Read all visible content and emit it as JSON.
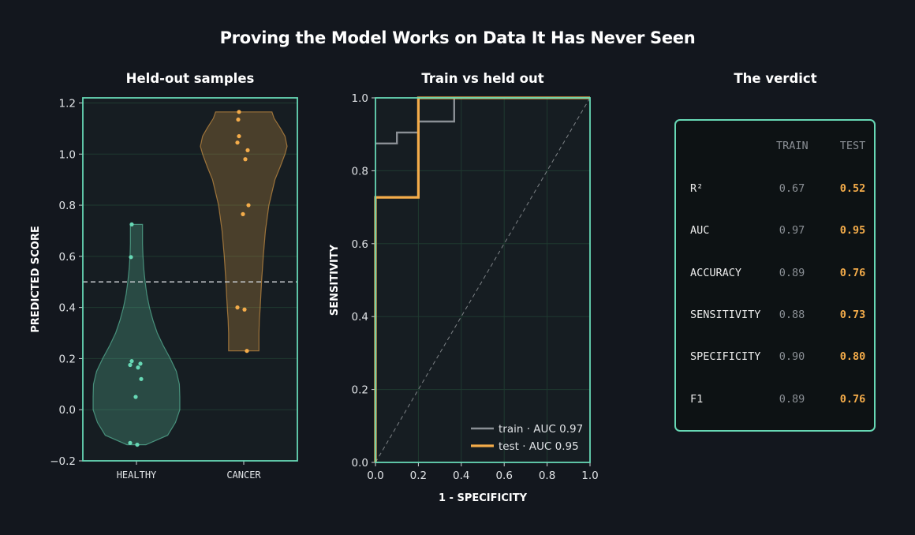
{
  "title": "Proving the Model Works on Data It Has Never Seen",
  "colors": {
    "background": "#13171e",
    "panel_border": "#67d8b5",
    "healthy": "#67d8b5",
    "cancer": "#f4ac4a",
    "train": "#8a8f95",
    "test": "#f4ac4a"
  },
  "chart_data": [
    {
      "type": "violin",
      "title": "Held-out samples",
      "xlabel": "",
      "ylabel": "PREDICTED SCORE",
      "ylim": [
        -0.2,
        1.22
      ],
      "yticks": [
        "1.2",
        "1.0",
        "0.8",
        "0.6",
        "0.4",
        "0.2",
        "0.0",
        "−0.2"
      ],
      "ytick_values": [
        1.2,
        1.0,
        0.8,
        0.6,
        0.4,
        0.2,
        0.0,
        -0.2
      ],
      "categories": [
        "HEALTHY",
        "CANCER"
      ],
      "threshold": 0.5,
      "grid": true,
      "groups": [
        {
          "name": "HEALTHY",
          "color": "#67d8b5",
          "range": [
            -0.137,
            0.725
          ],
          "points": [
            0.725,
            0.597,
            0.19,
            0.175,
            0.18,
            0.165,
            0.12,
            0.05,
            -0.13,
            -0.137
          ],
          "profile": [
            [
              -0.137,
              0.22
            ],
            [
              -0.1,
              0.72
            ],
            [
              -0.05,
              0.9
            ],
            [
              0.0,
              1.0
            ],
            [
              0.05,
              1.0
            ],
            [
              0.1,
              0.99
            ],
            [
              0.15,
              0.92
            ],
            [
              0.2,
              0.78
            ],
            [
              0.25,
              0.62
            ],
            [
              0.3,
              0.48
            ],
            [
              0.35,
              0.38
            ],
            [
              0.4,
              0.3
            ],
            [
              0.45,
              0.24
            ],
            [
              0.5,
              0.2
            ],
            [
              0.55,
              0.17
            ],
            [
              0.6,
              0.15
            ],
            [
              0.65,
              0.14
            ],
            [
              0.725,
              0.14
            ]
          ]
        },
        {
          "name": "CANCER",
          "color": "#f4ac4a",
          "range": [
            0.23,
            1.165
          ],
          "points": [
            1.165,
            1.135,
            1.07,
            1.045,
            1.015,
            0.98,
            0.8,
            0.765,
            0.4,
            0.392,
            0.23
          ],
          "profile": [
            [
              0.23,
              0.35
            ],
            [
              0.3,
              0.35
            ],
            [
              0.35,
              0.36
            ],
            [
              0.4,
              0.38
            ],
            [
              0.5,
              0.41
            ],
            [
              0.6,
              0.45
            ],
            [
              0.7,
              0.5
            ],
            [
              0.8,
              0.58
            ],
            [
              0.9,
              0.72
            ],
            [
              0.95,
              0.84
            ],
            [
              1.0,
              0.95
            ],
            [
              1.03,
              1.0
            ],
            [
              1.07,
              0.95
            ],
            [
              1.1,
              0.85
            ],
            [
              1.14,
              0.7
            ],
            [
              1.165,
              0.65
            ]
          ]
        }
      ]
    },
    {
      "type": "line",
      "title": "Train vs held out",
      "xlabel": "1 - SPECIFICITY",
      "ylabel": "SENSITIVITY",
      "xlim": [
        0,
        1
      ],
      "ylim": [
        0,
        1
      ],
      "xticks": [
        "0.0",
        "0.2",
        "0.4",
        "0.6",
        "0.8",
        "1.0"
      ],
      "yticks": [
        "0.0",
        "0.2",
        "0.4",
        "0.6",
        "0.8",
        "1.0"
      ],
      "grid": true,
      "legend": "bottom-right",
      "series": [
        {
          "name": "train · AUC 0.97",
          "color": "#8a8f95",
          "points": [
            [
              0,
              0.875
            ],
            [
              0.1,
              0.875
            ],
            [
              0.1,
              0.905
            ],
            [
              0.2,
              0.905
            ],
            [
              0.2,
              0.935
            ],
            [
              0.367,
              0.935
            ],
            [
              0.367,
              1.0
            ],
            [
              1.0,
              1.0
            ]
          ]
        },
        {
          "name": "test · AUC 0.95",
          "color": "#f4ac4a",
          "points": [
            [
              0,
              0
            ],
            [
              0,
              0.727
            ],
            [
              0.2,
              0.727
            ],
            [
              0.2,
              1.0
            ],
            [
              1.0,
              1.0
            ]
          ]
        }
      ],
      "diagonal": true
    },
    {
      "type": "table",
      "title": "The verdict",
      "columns": [
        "",
        "TRAIN",
        "TEST"
      ],
      "rows": [
        {
          "label": "R²",
          "train": "0.67",
          "test": "0.52"
        },
        {
          "label": "AUC",
          "train": "0.97",
          "test": "0.95"
        },
        {
          "label": "ACCURACY",
          "train": "0.89",
          "test": "0.76"
        },
        {
          "label": "SENSITIVITY",
          "train": "0.88",
          "test": "0.73"
        },
        {
          "label": "SPECIFICITY",
          "train": "0.90",
          "test": "0.80"
        },
        {
          "label": "F1",
          "train": "0.89",
          "test": "0.76"
        }
      ]
    }
  ]
}
